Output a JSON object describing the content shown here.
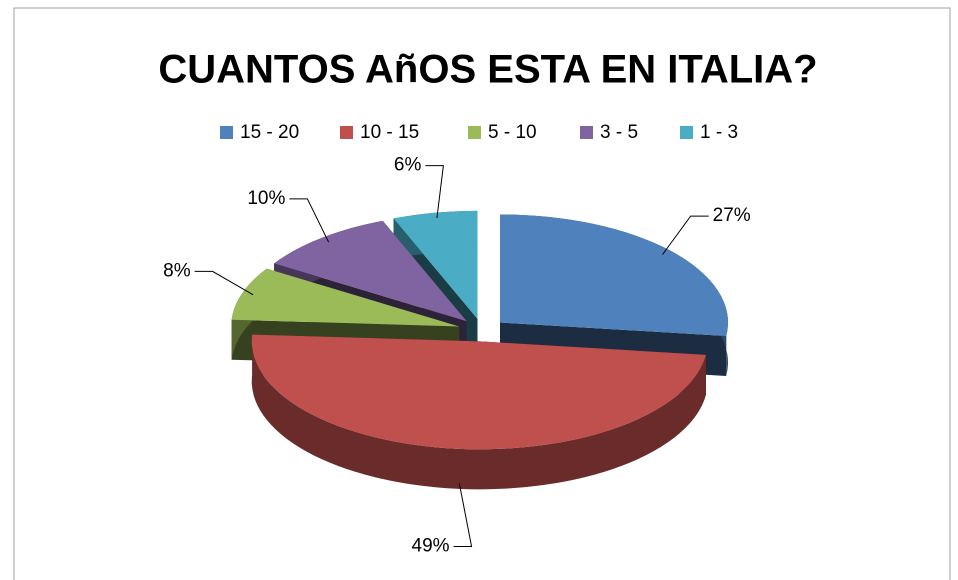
{
  "chart_data": {
    "type": "pie3d",
    "title": "CUANTOS AñOS ESTA EN ITALIA?",
    "categories": [
      "15 - 20",
      "10 - 15",
      "5 - 10",
      "3 - 5",
      "1 - 3"
    ],
    "values": [
      27,
      49,
      8,
      10,
      6
    ],
    "value_labels": [
      "27%",
      "49%",
      "8%",
      "10%",
      "6%"
    ],
    "colors": [
      "#4f81bd",
      "#c0504d",
      "#9bbb59",
      "#8064a2",
      "#4bacc6"
    ],
    "legend": "top"
  }
}
